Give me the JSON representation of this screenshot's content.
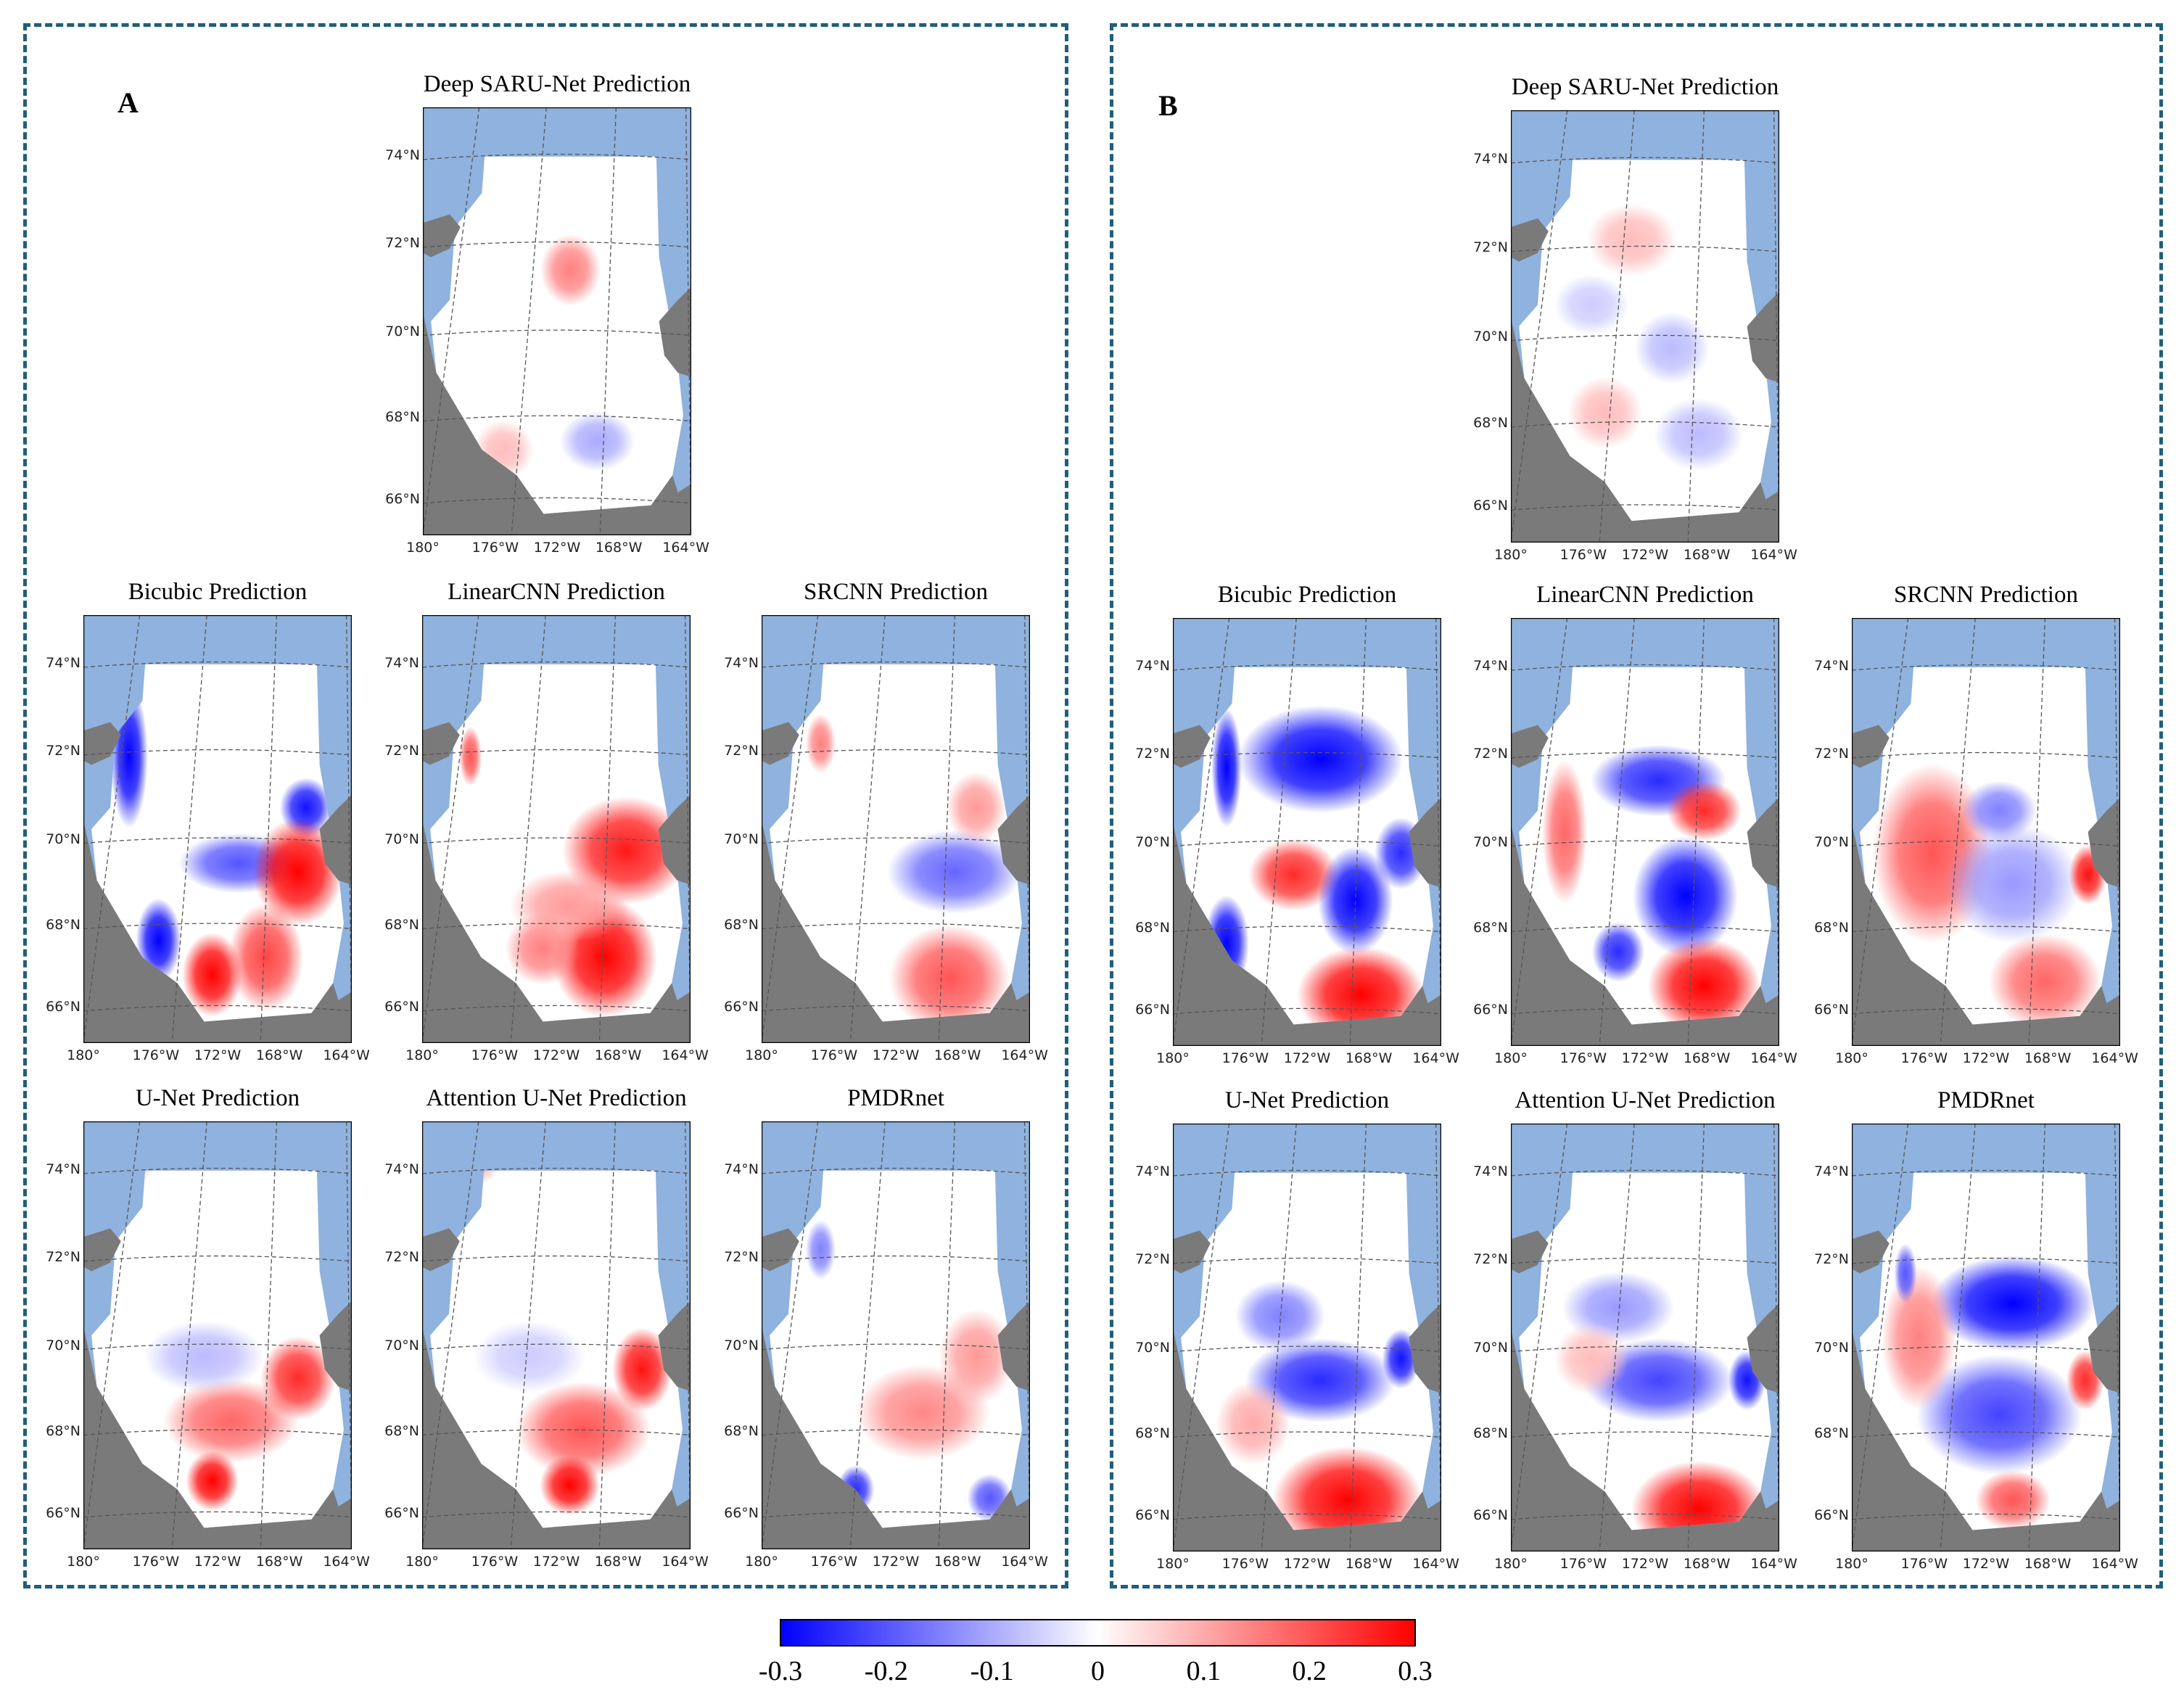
{
  "colors": {
    "ocean": "#8fb2de",
    "land": "#7a7a7a",
    "frame": "#1f5f7a",
    "neg": "#0000ff",
    "pos": "#ff0000"
  },
  "lat_labels": [
    "74°N",
    "72°N",
    "70°N",
    "68°N",
    "66°N"
  ],
  "lon_labels": [
    "180°",
    "176°W",
    "172°W",
    "168°W",
    "164°W"
  ],
  "panels": [
    {
      "letter": "A",
      "maps": [
        {
          "id": "a-saru",
          "title": "Deep SARU-Net Prediction",
          "blobs": [
            [
              0.55,
              0.38,
              0.08,
              0.06,
              0.15
            ],
            [
              0.65,
              0.78,
              0.1,
              0.05,
              -0.1
            ],
            [
              0.3,
              0.8,
              0.08,
              0.05,
              0.08
            ]
          ]
        },
        {
          "id": "a-bicubic",
          "title": "Bicubic Prediction",
          "blobs": [
            [
              0.17,
              0.33,
              0.05,
              0.12,
              -0.3
            ],
            [
              0.28,
              0.76,
              0.06,
              0.07,
              -0.3
            ],
            [
              0.83,
              0.45,
              0.07,
              0.05,
              -0.28
            ],
            [
              0.58,
              0.58,
              0.16,
              0.05,
              -0.2
            ],
            [
              0.8,
              0.6,
              0.12,
              0.09,
              0.3
            ],
            [
              0.48,
              0.84,
              0.08,
              0.07,
              0.3
            ],
            [
              0.68,
              0.8,
              0.1,
              0.09,
              0.22
            ],
            [
              0.18,
              0.08,
              0.05,
              0.05,
              0.12
            ]
          ]
        },
        {
          "id": "a-linearcnn",
          "title": "LinearCNN Prediction",
          "blobs": [
            [
              0.76,
              0.55,
              0.17,
              0.09,
              0.27
            ],
            [
              0.68,
              0.8,
              0.14,
              0.1,
              0.3
            ],
            [
              0.45,
              0.78,
              0.1,
              0.06,
              0.15
            ],
            [
              0.15,
              0.07,
              0.08,
              0.05,
              0.1
            ],
            [
              0.18,
              0.33,
              0.03,
              0.05,
              0.2
            ],
            [
              0.55,
              0.68,
              0.16,
              0.06,
              0.12
            ]
          ]
        },
        {
          "id": "a-srcnn",
          "title": "SRCNN Prediction",
          "blobs": [
            [
              0.72,
              0.6,
              0.18,
              0.07,
              -0.18
            ],
            [
              0.7,
              0.85,
              0.16,
              0.09,
              0.2
            ],
            [
              0.22,
              0.3,
              0.04,
              0.05,
              0.15
            ],
            [
              0.18,
              0.08,
              0.06,
              0.05,
              0.1
            ],
            [
              0.8,
              0.45,
              0.08,
              0.06,
              0.12
            ]
          ]
        },
        {
          "id": "a-unet",
          "title": "U-Net Prediction",
          "blobs": [
            [
              0.55,
              0.7,
              0.18,
              0.07,
              0.18
            ],
            [
              0.8,
              0.6,
              0.1,
              0.07,
              0.25
            ],
            [
              0.48,
              0.84,
              0.07,
              0.05,
              0.3
            ],
            [
              0.45,
              0.55,
              0.16,
              0.06,
              -0.08
            ],
            [
              0.18,
              0.08,
              0.07,
              0.05,
              0.1
            ]
          ]
        },
        {
          "id": "a-attention",
          "title": "Attention U-Net Prediction",
          "blobs": [
            [
              0.6,
              0.72,
              0.18,
              0.08,
              0.2
            ],
            [
              0.82,
              0.58,
              0.08,
              0.07,
              0.28
            ],
            [
              0.55,
              0.85,
              0.08,
              0.05,
              0.3
            ],
            [
              0.4,
              0.55,
              0.15,
              0.06,
              -0.06
            ],
            [
              0.2,
              0.08,
              0.07,
              0.05,
              0.12
            ]
          ]
        },
        {
          "id": "a-pmdrnet",
          "title": "PMDRnet",
          "blobs": [
            [
              0.6,
              0.68,
              0.18,
              0.08,
              0.14
            ],
            [
              0.8,
              0.55,
              0.1,
              0.08,
              0.12
            ],
            [
              0.35,
              0.86,
              0.05,
              0.04,
              -0.25
            ],
            [
              0.22,
              0.3,
              0.04,
              0.05,
              -0.15
            ],
            [
              0.85,
              0.88,
              0.06,
              0.04,
              -0.2
            ]
          ]
        }
      ]
    },
    {
      "letter": "B",
      "maps": [
        {
          "id": "b-saru",
          "title": "Deep SARU-Net Prediction",
          "blobs": [
            [
              0.45,
              0.3,
              0.12,
              0.06,
              0.08
            ],
            [
              0.6,
              0.55,
              0.1,
              0.06,
              -0.08
            ],
            [
              0.35,
              0.7,
              0.1,
              0.06,
              0.08
            ],
            [
              0.7,
              0.75,
              0.12,
              0.06,
              -0.08
            ],
            [
              0.3,
              0.45,
              0.1,
              0.05,
              -0.06
            ]
          ]
        },
        {
          "id": "b-bicubic",
          "title": "Bicubic Prediction",
          "blobs": [
            [
              0.55,
              0.33,
              0.22,
              0.09,
              -0.3
            ],
            [
              0.45,
              0.6,
              0.12,
              0.06,
              0.25
            ],
            [
              0.68,
              0.66,
              0.1,
              0.09,
              -0.3
            ],
            [
              0.7,
              0.88,
              0.17,
              0.08,
              0.3
            ],
            [
              0.2,
              0.35,
              0.04,
              0.1,
              -0.3
            ],
            [
              0.2,
              0.76,
              0.06,
              0.08,
              -0.3
            ],
            [
              0.85,
              0.55,
              0.07,
              0.06,
              -0.25
            ]
          ]
        },
        {
          "id": "b-linearcnn",
          "title": "LinearCNN Prediction",
          "blobs": [
            [
              0.55,
              0.38,
              0.18,
              0.06,
              -0.25
            ],
            [
              0.72,
              0.45,
              0.1,
              0.05,
              0.25
            ],
            [
              0.65,
              0.65,
              0.14,
              0.1,
              -0.3
            ],
            [
              0.72,
              0.86,
              0.15,
              0.08,
              0.3
            ],
            [
              0.2,
              0.5,
              0.06,
              0.12,
              0.18
            ],
            [
              0.4,
              0.78,
              0.07,
              0.05,
              -0.25
            ]
          ]
        },
        {
          "id": "b-srcnn",
          "title": "SRCNN Prediction",
          "blobs": [
            [
              0.3,
              0.55,
              0.16,
              0.15,
              0.2
            ],
            [
              0.6,
              0.62,
              0.18,
              0.1,
              -0.12
            ],
            [
              0.72,
              0.85,
              0.15,
              0.08,
              0.18
            ],
            [
              0.55,
              0.45,
              0.1,
              0.05,
              -0.15
            ],
            [
              0.88,
              0.6,
              0.05,
              0.05,
              0.28
            ]
          ]
        },
        {
          "id": "b-unet",
          "title": "U-Net Prediction",
          "blobs": [
            [
              0.65,
              0.88,
              0.2,
              0.09,
              0.3
            ],
            [
              0.55,
              0.6,
              0.2,
              0.07,
              -0.25
            ],
            [
              0.4,
              0.45,
              0.12,
              0.06,
              -0.15
            ],
            [
              0.85,
              0.55,
              0.05,
              0.05,
              -0.28
            ],
            [
              0.3,
              0.7,
              0.1,
              0.07,
              0.1
            ]
          ]
        },
        {
          "id": "b-attention",
          "title": "Attention U-Net Prediction",
          "blobs": [
            [
              0.7,
              0.9,
              0.18,
              0.08,
              0.3
            ],
            [
              0.55,
              0.6,
              0.2,
              0.07,
              -0.22
            ],
            [
              0.4,
              0.43,
              0.15,
              0.06,
              -0.12
            ],
            [
              0.88,
              0.6,
              0.05,
              0.05,
              -0.28
            ],
            [
              0.3,
              0.55,
              0.1,
              0.06,
              0.08
            ]
          ]
        },
        {
          "id": "b-pmdrnet",
          "title": "PMDRnet",
          "blobs": [
            [
              0.6,
              0.42,
              0.22,
              0.08,
              -0.3
            ],
            [
              0.55,
              0.68,
              0.22,
              0.1,
              -0.22
            ],
            [
              0.25,
              0.5,
              0.1,
              0.12,
              0.15
            ],
            [
              0.6,
              0.88,
              0.1,
              0.05,
              0.2
            ],
            [
              0.87,
              0.6,
              0.05,
              0.05,
              0.25
            ],
            [
              0.2,
              0.35,
              0.03,
              0.05,
              -0.2
            ]
          ]
        }
      ]
    }
  ],
  "colorbar": {
    "ticks": [
      "-0.3",
      "-0.2",
      "-0.1",
      "0",
      "0.1",
      "0.2",
      "0.3"
    ]
  }
}
